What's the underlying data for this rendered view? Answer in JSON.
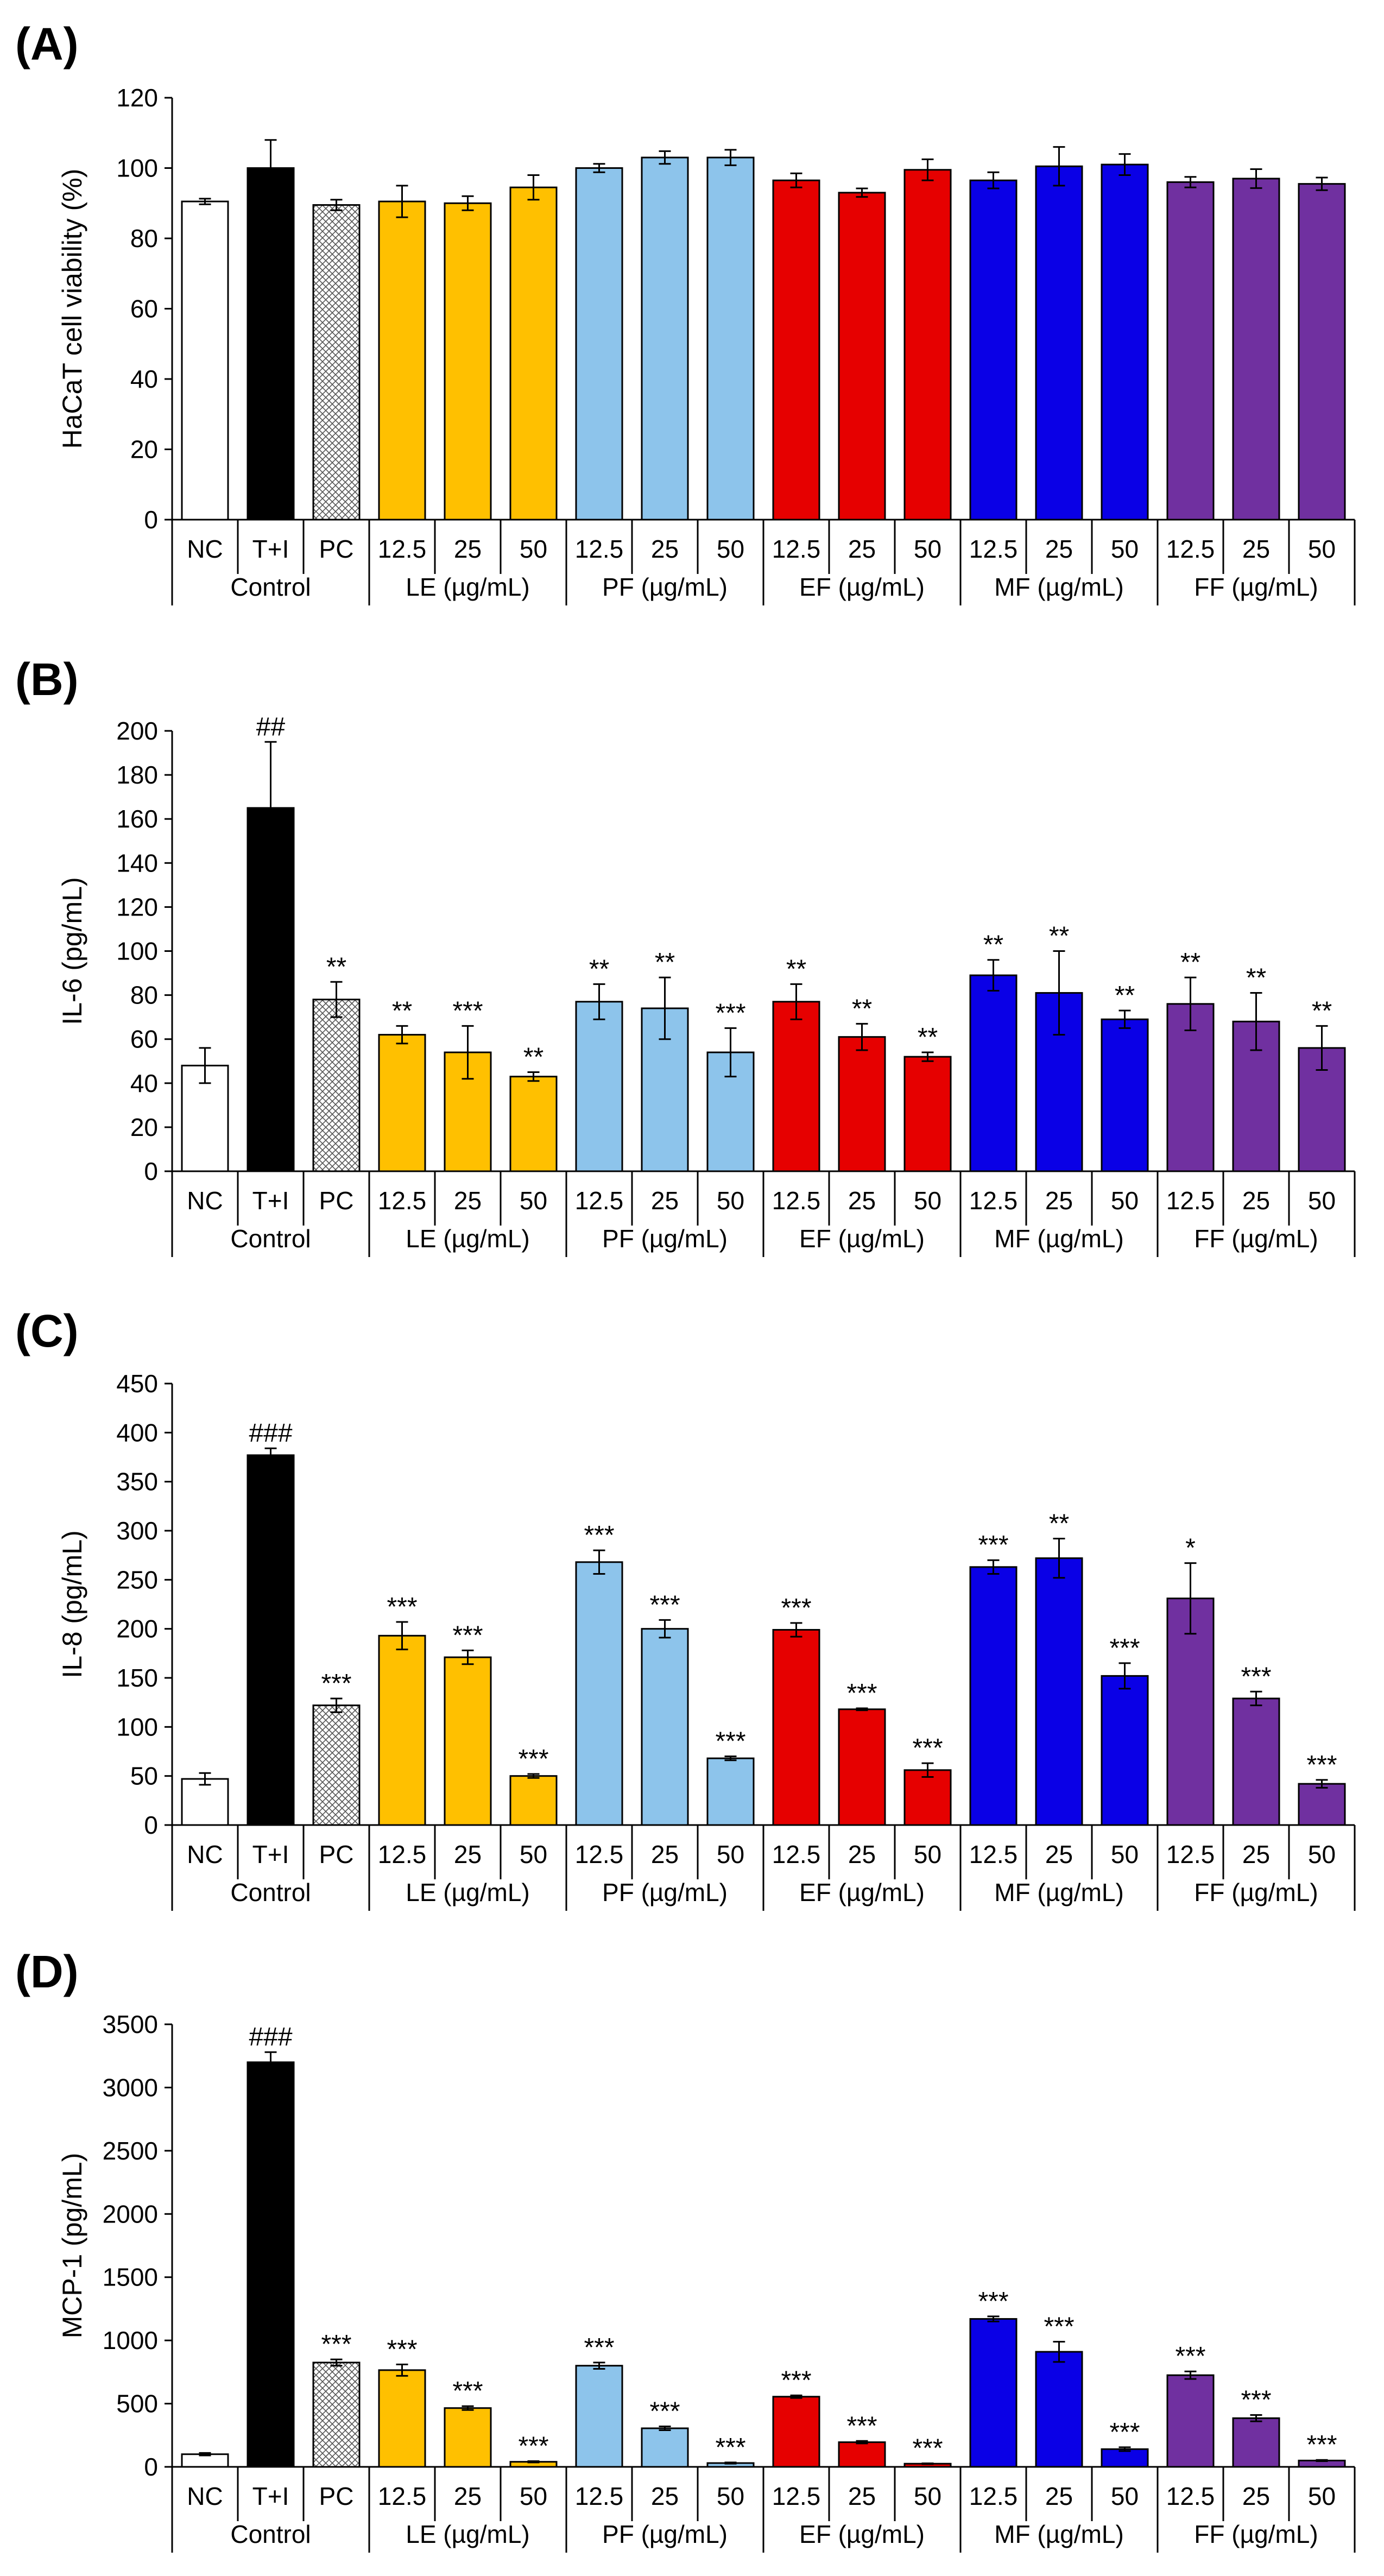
{
  "colors": {
    "NC": "#ffffff",
    "T+I": "#000000",
    "PC": "hatch",
    "LE": "#ffc000",
    "PF": "#8dc4eb",
    "EF": "#e60000",
    "MF": "#0a00e6",
    "FF": "#7030a0",
    "axis": "#000000"
  },
  "chart_data": [
    {
      "type": "bar",
      "panel_label": "(A)",
      "ylabel": "HaCaT cell viability (%)",
      "ylim": [
        0,
        120
      ],
      "yticks": [
        "0",
        "20",
        "40",
        "60",
        "80",
        "100",
        "120"
      ],
      "categories": [
        "NC",
        "T+I",
        "PC",
        "12.5",
        "25",
        "50",
        "12.5",
        "25",
        "50",
        "12.5",
        "25",
        "50",
        "12.5",
        "25",
        "50",
        "12.5",
        "25",
        "50"
      ],
      "groups": [
        "Control",
        "LE (µg/mL)",
        "PF (µg/mL)",
        "EF (µg/mL)",
        "MF (µg/mL)",
        "FF (µg/mL)"
      ],
      "values": [
        90.5,
        100,
        89.5,
        90.5,
        90,
        94.5,
        100,
        103,
        103,
        96.5,
        93,
        99.5,
        96.5,
        100.5,
        101,
        96,
        97,
        95.5
      ],
      "errors": [
        0.8,
        8,
        1.5,
        4.5,
        2,
        3.5,
        1.2,
        1.8,
        2.2,
        2,
        1.2,
        3,
        2.3,
        5.5,
        3,
        1.5,
        2.7,
        1.8
      ],
      "annotations": [
        "",
        "",
        "",
        "",
        "",
        "",
        "",
        "",
        "",
        "",
        "",
        "",
        "",
        "",
        "",
        "",
        "",
        ""
      ]
    },
    {
      "type": "bar",
      "panel_label": "(B)",
      "ylabel": "IL-6 (pg/mL)",
      "ylim": [
        0,
        200
      ],
      "yticks": [
        "0",
        "20",
        "40",
        "60",
        "80",
        "100",
        "120",
        "140",
        "160",
        "180",
        "200"
      ],
      "categories": [
        "NC",
        "T+I",
        "PC",
        "12.5",
        "25",
        "50",
        "12.5",
        "25",
        "50",
        "12.5",
        "25",
        "50",
        "12.5",
        "25",
        "50",
        "12.5",
        "25",
        "50"
      ],
      "groups": [
        "Control",
        "LE (µg/mL)",
        "PF (µg/mL)",
        "EF (µg/mL)",
        "MF (µg/mL)",
        "FF (µg/mL)"
      ],
      "values": [
        48,
        165,
        78,
        62,
        54,
        43,
        77,
        74,
        54,
        77,
        61,
        52,
        89,
        81,
        69,
        76,
        68,
        56
      ],
      "errors": [
        8,
        30,
        8,
        4,
        12,
        2,
        8,
        14,
        11,
        8,
        6,
        2,
        7,
        19,
        4,
        12,
        13,
        10
      ],
      "annotations": [
        "",
        "##",
        "**",
        "**",
        "***",
        "**",
        "**",
        "**",
        "***",
        "**",
        "**",
        "**",
        "**",
        "**",
        "**",
        "**",
        "**",
        "**"
      ]
    },
    {
      "type": "bar",
      "panel_label": "(C)",
      "ylabel": "IL-8 (pg/mL)",
      "ylim": [
        0,
        450
      ],
      "yticks": [
        "0",
        "50",
        "100",
        "150",
        "200",
        "250",
        "300",
        "350",
        "400",
        "450"
      ],
      "categories": [
        "NC",
        "T+I",
        "PC",
        "12.5",
        "25",
        "50",
        "12.5",
        "25",
        "50",
        "12.5",
        "25",
        "50",
        "12.5",
        "25",
        "50",
        "12.5",
        "25",
        "50"
      ],
      "groups": [
        "Control",
        "LE (µg/mL)",
        "PF (µg/mL)",
        "EF (µg/mL)",
        "MF (µg/mL)",
        "FF (µg/mL)"
      ],
      "values": [
        47,
        377,
        122,
        193,
        171,
        50,
        268,
        200,
        68,
        199,
        118,
        56,
        263,
        272,
        152,
        231,
        129,
        42
      ],
      "errors": [
        6,
        7,
        7,
        14,
        7,
        2,
        12,
        9,
        2,
        7,
        1,
        7,
        7,
        20,
        13,
        36,
        7,
        4
      ],
      "annotations": [
        "",
        "###",
        "***",
        "***",
        "***",
        "***",
        "***",
        "***",
        "***",
        "***",
        "***",
        "***",
        "***",
        "**",
        "***",
        "*",
        "***",
        "***"
      ]
    },
    {
      "type": "bar",
      "panel_label": "(D)",
      "ylabel": "MCP-1 (pg/mL)",
      "ylim": [
        0,
        3500
      ],
      "yticks": [
        "0",
        "500",
        "1000",
        "1500",
        "2000",
        "2500",
        "3000",
        "3500"
      ],
      "categories": [
        "NC",
        "T+I",
        "PC",
        "12.5",
        "25",
        "50",
        "12.5",
        "25",
        "50",
        "12.5",
        "25",
        "50",
        "12.5",
        "25",
        "50",
        "12.5",
        "25",
        "50"
      ],
      "groups": [
        "Control",
        "LE (µg/mL)",
        "PF (µg/mL)",
        "EF (µg/mL)",
        "MF (µg/mL)",
        "FF (µg/mL)"
      ],
      "values": [
        100,
        3200,
        825,
        765,
        465,
        40,
        800,
        305,
        30,
        555,
        195,
        25,
        1170,
        910,
        140,
        725,
        385,
        50
      ],
      "errors": [
        10,
        80,
        25,
        45,
        15,
        5,
        25,
        15,
        5,
        10,
        10,
        3,
        20,
        80,
        15,
        30,
        25,
        5
      ],
      "annotations": [
        "",
        "###",
        "***",
        "***",
        "***",
        "***",
        "***",
        "***",
        "***",
        "***",
        "***",
        "***",
        "***",
        "***",
        "***",
        "***",
        "***",
        "***"
      ]
    }
  ]
}
